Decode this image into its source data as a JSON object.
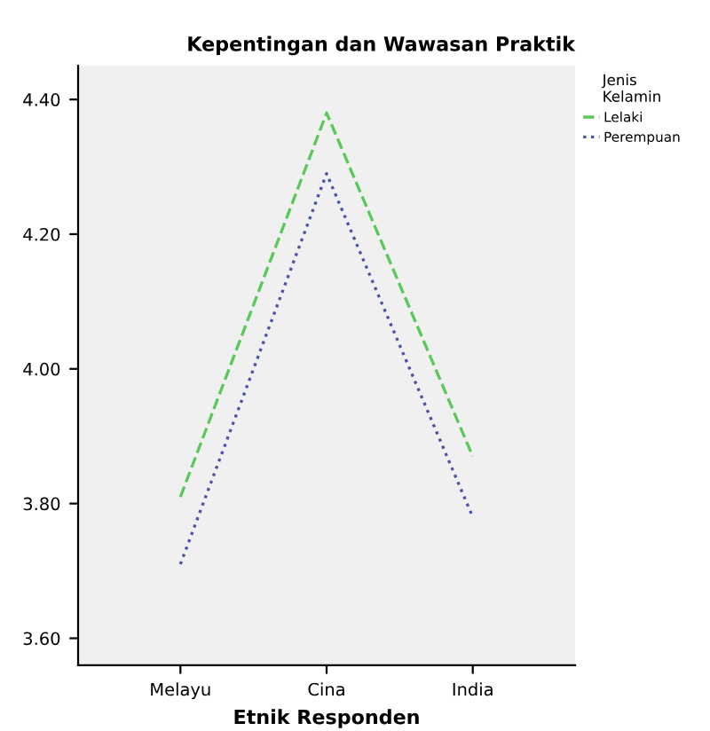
{
  "chart_data": {
    "type": "line",
    "title": "Kepentingan dan Wawasan Praktik",
    "xlabel": "Etnik Responden",
    "legend_title": "Jenis\nKelamin",
    "categories": [
      "Melayu",
      "Cina",
      "India"
    ],
    "series": [
      {
        "name": "Lelaki",
        "color": "#5cc85c",
        "values": [
          3.81,
          4.38,
          3.87
        ],
        "line_style": "dashed"
      },
      {
        "name": "Perempuan",
        "color": "#4a55a8",
        "values": [
          3.71,
          4.29,
          3.78
        ],
        "line_style": "dotted"
      }
    ],
    "ylim": [
      3.56,
      4.45
    ],
    "yticks": [
      {
        "value": 3.6,
        "label": "3.60"
      },
      {
        "value": 3.8,
        "label": "3.80"
      },
      {
        "value": 4.0,
        "label": "4.00"
      },
      {
        "value": 4.2,
        "label": "4.20"
      },
      {
        "value": 4.4,
        "label": "4.40"
      }
    ],
    "grid": false,
    "legend": "top right",
    "marker": "none"
  }
}
